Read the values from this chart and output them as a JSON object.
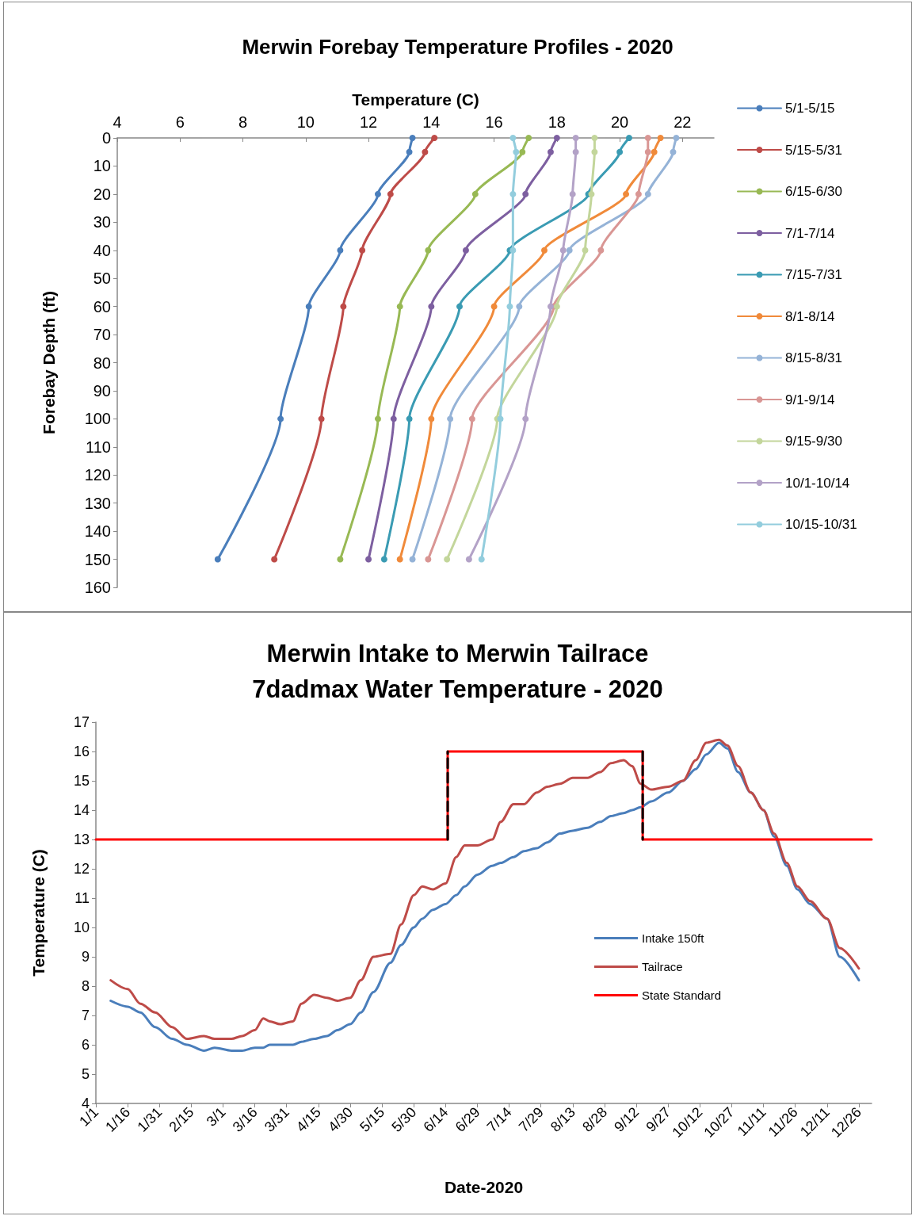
{
  "chart_data": [
    {
      "type": "line",
      "title": "Merwin Forebay Temperature Profiles - 2020",
      "xlabel": "Temperature (C)",
      "ylabel": "Forebay Depth (ft)",
      "xlim": [
        4,
        23
      ],
      "xticks": [
        4,
        6,
        8,
        10,
        12,
        14,
        16,
        18,
        20,
        22
      ],
      "ylim": [
        160,
        0
      ],
      "yticks": [
        0,
        10,
        20,
        30,
        40,
        50,
        60,
        70,
        80,
        90,
        100,
        110,
        120,
        130,
        140,
        150,
        160
      ],
      "marker": "circle",
      "legend": "right",
      "grid": false,
      "series": [
        {
          "name": "5/1-5/15",
          "color": "#4a7ebb",
          "x": [
            13.4,
            13.3,
            12.3,
            11.1,
            10.1,
            9.2,
            7.2
          ],
          "values": [
            0,
            5,
            20,
            40,
            60,
            100,
            150
          ]
        },
        {
          "name": "5/15-5/31",
          "color": "#be4b48",
          "x": [
            14.1,
            13.8,
            12.7,
            11.8,
            11.2,
            10.5,
            9.0
          ],
          "values": [
            0,
            5,
            20,
            40,
            60,
            100,
            150
          ]
        },
        {
          "name": "6/15-6/30",
          "color": "#98b954",
          "x": [
            17.1,
            16.9,
            15.4,
            13.9,
            13.0,
            12.3,
            11.1
          ],
          "values": [
            0,
            5,
            20,
            40,
            60,
            100,
            150
          ]
        },
        {
          "name": "7/1-7/14",
          "color": "#7d5fa0",
          "x": [
            18.0,
            17.8,
            17.0,
            15.1,
            14.0,
            12.8,
            12.0
          ],
          "values": [
            0,
            5,
            20,
            40,
            60,
            100,
            150
          ]
        },
        {
          "name": "7/15-7/31",
          "color": "#3a9bb3",
          "x": [
            20.3,
            20.0,
            19.0,
            16.5,
            14.9,
            13.3,
            12.5
          ],
          "values": [
            0,
            5,
            20,
            40,
            60,
            100,
            150
          ]
        },
        {
          "name": "8/1-8/14",
          "color": "#f08a3a",
          "x": [
            21.3,
            21.1,
            20.2,
            17.6,
            16.0,
            14.0,
            13.0
          ],
          "values": [
            0,
            5,
            20,
            40,
            60,
            100,
            150
          ]
        },
        {
          "name": "8/15-8/31",
          "color": "#95b3d7",
          "x": [
            21.8,
            21.7,
            20.9,
            18.4,
            16.8,
            14.6,
            13.4
          ],
          "values": [
            0,
            5,
            20,
            40,
            60,
            100,
            150
          ]
        },
        {
          "name": "9/1-9/14",
          "color": "#d99694",
          "x": [
            20.9,
            20.9,
            20.6,
            19.4,
            17.9,
            15.3,
            13.9
          ],
          "values": [
            0,
            5,
            20,
            40,
            60,
            100,
            150
          ]
        },
        {
          "name": "9/15-9/30",
          "color": "#c3d69b",
          "x": [
            19.2,
            19.2,
            19.1,
            18.9,
            18.0,
            16.1,
            14.5
          ],
          "values": [
            0,
            5,
            20,
            40,
            60,
            100,
            150
          ]
        },
        {
          "name": "10/1-10/14",
          "color": "#b3a2c7",
          "x": [
            18.6,
            18.6,
            18.5,
            18.2,
            17.8,
            17.0,
            15.2
          ],
          "values": [
            0,
            5,
            20,
            40,
            60,
            100,
            150
          ]
        },
        {
          "name": "10/15-10/31",
          "color": "#93cddd",
          "x": [
            16.6,
            16.7,
            16.6,
            16.6,
            16.5,
            16.2,
            15.6
          ],
          "values": [
            0,
            5,
            20,
            40,
            60,
            100,
            150
          ]
        }
      ]
    },
    {
      "type": "line",
      "title": "Merwin Intake to Merwin Tailrace\n7dadmax Water Temperature - 2020",
      "xlabel": "Date-2020",
      "ylabel": "Temperature (C)",
      "xlim": [
        "2020-01-01",
        "2021-01-01"
      ],
      "xticks": [
        {
          "value": "2020-01-01",
          "label": "1/1"
        },
        {
          "value": "2020-01-16",
          "label": "1/16"
        },
        {
          "value": "2020-01-31",
          "label": "1/31"
        },
        {
          "value": "2020-02-15",
          "label": "2/15"
        },
        {
          "value": "2020-03-01",
          "label": "3/1"
        },
        {
          "value": "2020-03-16",
          "label": "3/16"
        },
        {
          "value": "2020-03-31",
          "label": "3/31"
        },
        {
          "value": "2020-04-15",
          "label": "4/15"
        },
        {
          "value": "2020-04-30",
          "label": "4/30"
        },
        {
          "value": "2020-05-15",
          "label": "5/15"
        },
        {
          "value": "2020-05-30",
          "label": "5/30"
        },
        {
          "value": "2020-06-14",
          "label": "6/14"
        },
        {
          "value": "2020-06-29",
          "label": "6/29"
        },
        {
          "value": "2020-07-14",
          "label": "7/14"
        },
        {
          "value": "2020-07-29",
          "label": "7/29"
        },
        {
          "value": "2020-08-13",
          "label": "8/13"
        },
        {
          "value": "2020-08-28",
          "label": "8/28"
        },
        {
          "value": "2020-09-12",
          "label": "9/12"
        },
        {
          "value": "2020-09-27",
          "label": "9/27"
        },
        {
          "value": "2020-10-12",
          "label": "10/12"
        },
        {
          "value": "2020-10-27",
          "label": "10/27"
        },
        {
          "value": "2020-11-11",
          "label": "11/11"
        },
        {
          "value": "2020-11-26",
          "label": "11/26"
        },
        {
          "value": "2020-12-11",
          "label": "12/11"
        },
        {
          "value": "2020-12-26",
          "label": "12/26"
        }
      ],
      "ylim": [
        4,
        17
      ],
      "yticks": [
        4,
        5,
        6,
        7,
        8,
        9,
        10,
        11,
        12,
        13,
        14,
        15,
        16,
        17
      ],
      "marker": "none",
      "legend": "right",
      "grid": false,
      "x": [
        "2020-01-08",
        "2020-01-16",
        "2020-01-22",
        "2020-01-29",
        "2020-02-06",
        "2020-02-13",
        "2020-02-21",
        "2020-02-26",
        "2020-03-05",
        "2020-03-10",
        "2020-03-16",
        "2020-03-20",
        "2020-03-23",
        "2020-03-28",
        "2020-04-03",
        "2020-04-07",
        "2020-04-13",
        "2020-04-19",
        "2020-04-24",
        "2020-04-30",
        "2020-05-05",
        "2020-05-11",
        "2020-05-19",
        "2020-05-24",
        "2020-05-30",
        "2020-06-03",
        "2020-06-08",
        "2020-06-14",
        "2020-06-19",
        "2020-06-23",
        "2020-06-29",
        "2020-07-06",
        "2020-07-10",
        "2020-07-16",
        "2020-07-21",
        "2020-07-27",
        "2020-08-01",
        "2020-08-07",
        "2020-08-13",
        "2020-08-20",
        "2020-08-26",
        "2020-08-31",
        "2020-09-06",
        "2020-09-10",
        "2020-09-14",
        "2020-09-19",
        "2020-09-27",
        "2020-10-04",
        "2020-10-10",
        "2020-10-15",
        "2020-10-21",
        "2020-10-25",
        "2020-10-30",
        "2020-11-05",
        "2020-11-11",
        "2020-11-16",
        "2020-11-22",
        "2020-11-27",
        "2020-12-03",
        "2020-12-11",
        "2020-12-17",
        "2020-12-26"
      ],
      "series": [
        {
          "name": "Intake 150ft",
          "color": "#4a7ebb",
          "values": [
            7.5,
            7.3,
            7.1,
            6.6,
            6.2,
            6.0,
            5.8,
            5.9,
            5.8,
            5.8,
            5.9,
            5.9,
            6.0,
            6.0,
            6.0,
            6.1,
            6.2,
            6.3,
            6.5,
            6.7,
            7.1,
            7.8,
            8.8,
            9.4,
            10.0,
            10.3,
            10.6,
            10.8,
            11.1,
            11.4,
            11.8,
            12.1,
            12.2,
            12.4,
            12.6,
            12.7,
            12.9,
            13.2,
            13.3,
            13.4,
            13.6,
            13.8,
            13.9,
            14.0,
            14.1,
            14.3,
            14.6,
            15.0,
            15.4,
            15.9,
            16.3,
            16.1,
            15.3,
            14.6,
            14.0,
            13.1,
            12.1,
            11.3,
            10.8,
            10.3,
            9.0,
            8.2
          ]
        },
        {
          "name": "Tailrace",
          "color": "#be4b48",
          "values": [
            8.2,
            7.9,
            7.4,
            7.1,
            6.6,
            6.2,
            6.3,
            6.2,
            6.2,
            6.3,
            6.5,
            6.9,
            6.8,
            6.7,
            6.8,
            7.4,
            7.7,
            7.6,
            7.5,
            7.6,
            8.2,
            9.0,
            9.1,
            10.1,
            11.1,
            11.4,
            11.3,
            11.5,
            12.4,
            12.8,
            12.8,
            13.0,
            13.6,
            14.2,
            14.2,
            14.6,
            14.8,
            14.9,
            15.1,
            15.1,
            15.3,
            15.6,
            15.7,
            15.5,
            14.9,
            14.7,
            14.8,
            15.0,
            15.7,
            16.3,
            16.4,
            16.2,
            15.5,
            14.6,
            14.0,
            13.2,
            12.2,
            11.4,
            10.9,
            10.3,
            9.3,
            8.6
          ]
        },
        {
          "name": "State Standard",
          "type": "step",
          "color": "#ff0000",
          "x": [
            "2020-01-01",
            "2020-06-15",
            "2020-09-15",
            "2021-01-01"
          ],
          "values": [
            13,
            16,
            13,
            13
          ]
        },
        {
          "color": "#000000",
          "line_style": "dashed",
          "x": [
            "2020-06-15",
            "2020-06-15"
          ],
          "values": [
            13,
            16
          ]
        },
        {
          "color": "#000000",
          "line_style": "dashed",
          "x": [
            "2020-09-15",
            "2020-09-15"
          ],
          "values": [
            16,
            13
          ]
        }
      ]
    }
  ]
}
